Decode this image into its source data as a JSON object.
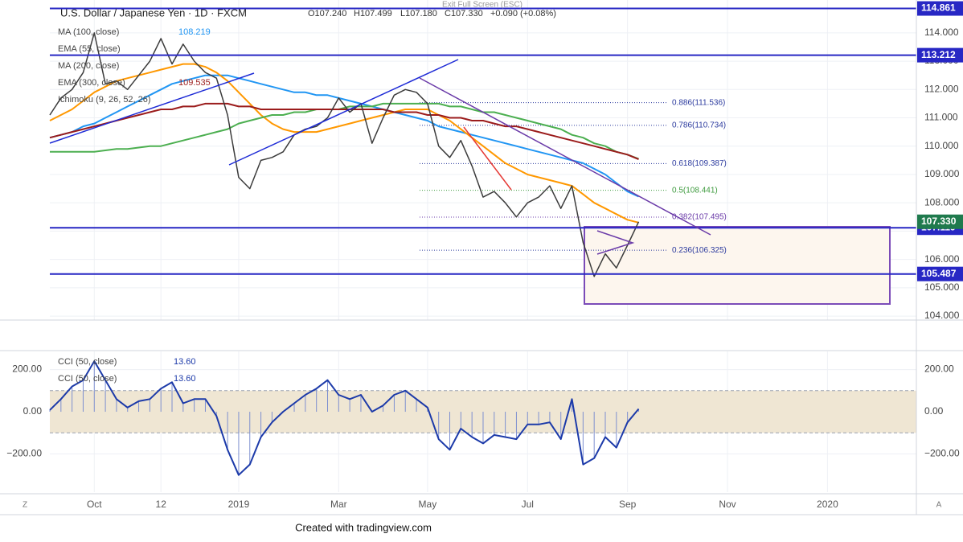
{
  "notice": "Exit Full Screen (ESC)",
  "footer": "Created with tradingview.com",
  "buttons": [
    "Z",
    "A"
  ],
  "x_axis": {
    "categories": [
      null,
      null,
      null,
      null,
      "Oct",
      null,
      null,
      null,
      null,
      null,
      "12",
      null,
      null,
      null,
      null,
      null,
      null,
      "2019",
      null,
      null,
      null,
      null,
      null,
      null,
      null,
      null,
      "Mar",
      null,
      null,
      null,
      null,
      null,
      null,
      null,
      "May",
      null,
      null,
      null,
      null,
      null,
      null,
      null,
      null,
      "Jul",
      null,
      null,
      null,
      null,
      null,
      null,
      null,
      null,
      "Sep",
      null,
      null,
      null,
      null,
      null,
      null,
      null,
      null,
      "Nov",
      null,
      null,
      null,
      null,
      null,
      null,
      null,
      null,
      "2020",
      null,
      null,
      null,
      null,
      null,
      null,
      null
    ]
  },
  "chart_data": [
    {
      "type": "line",
      "title": "U.S. Dollar / Japanese Yen · 1D · FXCM",
      "ohlc": [
        "O107.240",
        "H107.499",
        "L107.180",
        "C107.330",
        "+0.090 (+0.08%)"
      ],
      "color": "#3b3b3b",
      "values": [
        111.1,
        111.7,
        112.0,
        112.6,
        114.0,
        112.2,
        112.3,
        112.0,
        112.5,
        113.0,
        113.8,
        112.9,
        113.6,
        113.0,
        112.6,
        112.4,
        111.1,
        108.9,
        108.5,
        109.5,
        109.6,
        109.8,
        110.4,
        110.6,
        110.7,
        111.0,
        111.7,
        111.2,
        111.5,
        110.1,
        111.0,
        111.8,
        112.0,
        111.9,
        111.5,
        110.0,
        109.6,
        110.2,
        109.3,
        108.2,
        108.4,
        108.0,
        107.5,
        108.0,
        108.2,
        108.6,
        107.8,
        108.6,
        106.6,
        105.4,
        106.2,
        105.7,
        106.5,
        107.33,
        null,
        null,
        null,
        null,
        null,
        null,
        null,
        null,
        null,
        null,
        null,
        null,
        null,
        null,
        null,
        null,
        null,
        null,
        null,
        null,
        null,
        null,
        null,
        null
      ],
      "series": [
        {
          "name": "MA (100, close)",
          "color": "#2196f3",
          "legend_value": "108.219",
          "values": [
            110.3,
            110.4,
            110.5,
            110.7,
            110.8,
            111.0,
            111.2,
            111.4,
            111.6,
            111.8,
            112.0,
            112.2,
            112.3,
            112.4,
            112.5,
            112.5,
            112.5,
            112.4,
            112.3,
            112.2,
            112.1,
            112.0,
            111.9,
            111.9,
            111.8,
            111.8,
            111.7,
            111.6,
            111.5,
            111.4,
            111.3,
            111.2,
            111.1,
            111.0,
            110.9,
            110.7,
            110.6,
            110.5,
            110.4,
            110.3,
            110.2,
            110.1,
            110.0,
            109.9,
            109.8,
            109.7,
            109.6,
            109.5,
            109.4,
            109.2,
            109.0,
            108.7,
            108.4,
            108.219,
            null,
            null,
            null,
            null,
            null,
            null,
            null,
            null,
            null,
            null,
            null,
            null,
            null,
            null,
            null,
            null,
            null,
            null,
            null,
            null,
            null,
            null,
            null,
            null
          ]
        },
        {
          "name": "EMA (55, close)",
          "color": "#ff9800",
          "values": [
            110.9,
            111.1,
            111.3,
            111.6,
            111.9,
            112.1,
            112.3,
            112.4,
            112.5,
            112.6,
            112.7,
            112.8,
            112.9,
            112.9,
            112.8,
            112.6,
            112.3,
            111.9,
            111.5,
            111.1,
            110.8,
            110.6,
            110.5,
            110.5,
            110.5,
            110.6,
            110.7,
            110.8,
            110.9,
            111.0,
            111.1,
            111.2,
            111.3,
            111.3,
            111.3,
            111.1,
            110.9,
            110.6,
            110.3,
            110.0,
            109.7,
            109.4,
            109.2,
            109.0,
            108.9,
            108.8,
            108.7,
            108.6,
            108.3,
            108.0,
            107.8,
            107.6,
            107.4,
            107.3,
            null,
            null,
            null,
            null,
            null,
            null,
            null,
            null,
            null,
            null,
            null,
            null,
            null,
            null,
            null,
            null,
            null,
            null,
            null,
            null,
            null,
            null,
            null,
            null
          ]
        },
        {
          "name": "MA (200, close)",
          "color": "#4caf50",
          "values": [
            109.8,
            109.8,
            109.8,
            109.8,
            109.8,
            109.85,
            109.9,
            109.9,
            109.95,
            110.0,
            110.0,
            110.1,
            110.2,
            110.3,
            110.4,
            110.5,
            110.6,
            110.8,
            110.9,
            111.0,
            111.1,
            111.1,
            111.2,
            111.2,
            111.3,
            111.3,
            111.3,
            111.4,
            111.4,
            111.4,
            111.5,
            111.5,
            111.5,
            111.5,
            111.5,
            111.5,
            111.4,
            111.4,
            111.3,
            111.2,
            111.2,
            111.1,
            111.0,
            110.9,
            110.8,
            110.7,
            110.6,
            110.4,
            110.3,
            110.1,
            110.0,
            109.8,
            109.7,
            109.55,
            null,
            null,
            null,
            null,
            null,
            null,
            null,
            null,
            null,
            null,
            null,
            null,
            null,
            null,
            null,
            null,
            null,
            null,
            null,
            null,
            null,
            null,
            null,
            null
          ]
        },
        {
          "name": "EMA (300, close)",
          "color": "#9b1c1c",
          "legend_value": "109.535",
          "values": [
            110.3,
            110.4,
            110.5,
            110.6,
            110.7,
            110.8,
            110.9,
            111.0,
            111.1,
            111.2,
            111.3,
            111.3,
            111.4,
            111.4,
            111.5,
            111.5,
            111.5,
            111.4,
            111.4,
            111.3,
            111.3,
            111.3,
            111.3,
            111.3,
            111.3,
            111.3,
            111.3,
            111.3,
            111.3,
            111.3,
            111.3,
            111.2,
            111.2,
            111.2,
            111.1,
            111.1,
            111.0,
            111.0,
            110.9,
            110.9,
            110.8,
            110.7,
            110.7,
            110.6,
            110.5,
            110.4,
            110.3,
            110.2,
            110.1,
            110.0,
            109.9,
            109.8,
            109.7,
            109.535,
            null,
            null,
            null,
            null,
            null,
            null,
            null,
            null,
            null,
            null,
            null,
            null,
            null,
            null,
            null,
            null,
            null,
            null,
            null,
            null,
            null,
            null,
            null,
            null
          ]
        }
      ],
      "extra_legend": [
        "Ichimoku (9, 26, 52, 26)"
      ],
      "ylim": [
        103.86,
        115.16
      ],
      "yticks": [
        {
          "value": 104,
          "label": "104.000"
        },
        {
          "value": 105,
          "label": "105.000"
        },
        {
          "value": 106,
          "label": "106.000"
        },
        {
          "value": 107,
          "label": "107.000"
        },
        {
          "value": 108,
          "label": "108.000"
        },
        {
          "value": 109,
          "label": "109.000"
        },
        {
          "value": 110,
          "label": "110.000"
        },
        {
          "value": 111,
          "label": "111.000"
        },
        {
          "value": 112,
          "label": "112.000"
        },
        {
          "value": 113,
          "label": "113.000"
        },
        {
          "value": 114,
          "label": "114.000"
        }
      ],
      "grid": true,
      "levels": [
        114.861,
        113.212,
        107.119,
        105.487
      ],
      "level_color": "#2727c4",
      "last_price": {
        "value": 107.33,
        "label": "107.330",
        "color": "#1f7a4d"
      },
      "fib_levels": [
        {
          "value": 111.536,
          "label": "0.886(111.536)",
          "color": "#2b3a9e"
        },
        {
          "value": 110.734,
          "label": "0.786(110.734)",
          "color": "#2b3a9e"
        },
        {
          "value": 109.387,
          "label": "0.618(109.387)",
          "color": "#2b3a9e"
        },
        {
          "value": 108.441,
          "label": "0.5(108.441)",
          "color": "#3f9b3f"
        },
        {
          "value": 107.495,
          "label": "0.382(107.495)",
          "color": "#6a3aa8"
        },
        {
          "value": 106.325,
          "label": "0.236(106.325)",
          "color": "#2b3a9e"
        }
      ]
    },
    {
      "type": "line",
      "legend": [
        {
          "name": "CCI (50, close)",
          "value": "13.60"
        },
        {
          "name": "CCI (50, close)",
          "value": "13.60"
        }
      ],
      "color": "#1c3aa9",
      "values": [
        8,
        60,
        120,
        150,
        240,
        150,
        60,
        20,
        50,
        60,
        110,
        140,
        40,
        60,
        60,
        -20,
        -180,
        -300,
        -250,
        -120,
        -50,
        0,
        40,
        80,
        110,
        150,
        80,
        60,
        80,
        0,
        30,
        80,
        100,
        60,
        20,
        -130,
        -180,
        -80,
        -120,
        -150,
        -110,
        -120,
        -130,
        -60,
        -60,
        -50,
        -130,
        60,
        -250,
        -220,
        -120,
        -170,
        -50,
        13.6,
        null,
        null,
        null,
        null,
        null,
        null,
        null,
        null,
        null,
        null,
        null,
        null,
        null,
        null,
        null,
        null,
        null,
        null,
        null,
        null,
        null,
        null,
        null,
        null
      ],
      "ylim": [
        -381,
        286
      ],
      "yticks": [
        {
          "value": 200,
          "label": "200.00"
        },
        {
          "value": 0,
          "label": "0.00"
        },
        {
          "value": -200,
          "label": "−200.00"
        }
      ],
      "grid": true,
      "band": [
        -100,
        100
      ],
      "band_color": "#efe6d3"
    }
  ]
}
